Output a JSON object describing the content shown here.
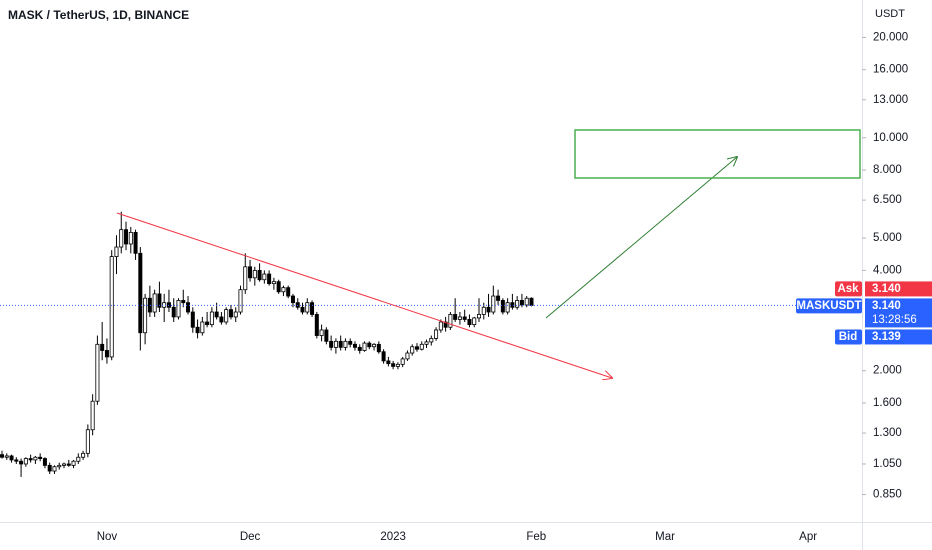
{
  "chart_data": {
    "type": "candlestick",
    "title": "MASK / TetherUS, 1D, BINANCE",
    "y_unit": "USDT",
    "log_scale": true,
    "ylim": [
      0.713,
      25.9
    ],
    "yticks": [
      {
        "value": 20,
        "label": "20.000"
      },
      {
        "value": 16,
        "label": "16.000"
      },
      {
        "value": 13,
        "label": "13.000"
      },
      {
        "value": 10,
        "label": "10.000"
      },
      {
        "value": 8,
        "label": "8.000"
      },
      {
        "value": 6.5,
        "label": "6.500"
      },
      {
        "value": 5,
        "label": "5.000"
      },
      {
        "value": 4,
        "label": "4.000"
      },
      {
        "value": 2,
        "label": "2.000"
      },
      {
        "value": 1.6,
        "label": "1.600"
      },
      {
        "value": 1.3,
        "label": "1.300"
      },
      {
        "value": 1.05,
        "label": "1.050"
      },
      {
        "value": 0.85,
        "label": "0.850"
      }
    ],
    "categories": [
      null,
      null,
      null,
      null,
      null,
      null,
      null,
      null,
      null,
      null,
      null,
      null,
      null,
      null,
      null,
      null,
      null,
      null,
      null,
      null,
      null,
      null,
      "Nov",
      null,
      null,
      null,
      null,
      null,
      null,
      null,
      null,
      null,
      null,
      null,
      null,
      null,
      null,
      null,
      null,
      null,
      null,
      null,
      null,
      null,
      null,
      null,
      null,
      null,
      null,
      null,
      null,
      null,
      "Dec",
      null,
      null,
      null,
      null,
      null,
      null,
      null,
      null,
      null,
      null,
      null,
      null,
      null,
      null,
      null,
      null,
      null,
      null,
      null,
      null,
      null,
      null,
      null,
      null,
      null,
      null,
      null,
      null,
      null,
      "2023",
      null,
      null,
      null,
      null,
      null,
      null,
      null,
      null,
      null,
      null,
      null,
      null,
      null,
      null,
      null,
      null,
      null,
      null,
      null,
      null,
      null,
      null,
      null,
      null,
      null,
      null,
      null,
      null,
      null,
      "Feb",
      null,
      null,
      null,
      null,
      null,
      null,
      null,
      null,
      null,
      null,
      null,
      null,
      null,
      null,
      null,
      null,
      null,
      null,
      null,
      null,
      null,
      null,
      null,
      null,
      null,
      null,
      "Mar",
      null,
      null,
      null,
      null,
      null,
      null,
      null,
      null,
      null,
      null,
      null,
      null,
      null,
      null,
      null,
      null,
      null,
      null,
      null,
      null,
      null,
      null,
      null,
      null,
      null,
      null,
      null,
      null,
      null,
      "Apr",
      null,
      null,
      null,
      null,
      null,
      null,
      null
    ],
    "series": [
      {
        "name": "MASKUSDT",
        "up_color": "#ffffff",
        "down_color": "#000000",
        "border_color": "#000000",
        "values": [
          [
            1.12,
            1.15,
            1.09,
            1.1
          ],
          [
            1.1,
            1.13,
            1.08,
            1.11
          ],
          [
            1.11,
            1.12,
            1.06,
            1.08
          ],
          [
            1.08,
            1.1,
            1.05,
            1.07
          ],
          [
            1.07,
            1.09,
            0.96,
            1.05
          ],
          [
            1.05,
            1.1,
            1.03,
            1.09
          ],
          [
            1.09,
            1.12,
            1.06,
            1.08
          ],
          [
            1.08,
            1.11,
            1.05,
            1.1
          ],
          [
            1.1,
            1.13,
            1.07,
            1.09
          ],
          [
            1.09,
            1.1,
            1.02,
            1.04
          ],
          [
            1.04,
            1.06,
            0.98,
            1.0
          ],
          [
            1.0,
            1.04,
            0.98,
            1.03
          ],
          [
            1.03,
            1.06,
            1.01,
            1.04
          ],
          [
            1.04,
            1.06,
            1.02,
            1.05
          ],
          [
            1.05,
            1.08,
            1.03,
            1.04
          ],
          [
            1.04,
            1.08,
            1.02,
            1.07
          ],
          [
            1.07,
            1.13,
            1.05,
            1.1
          ],
          [
            1.1,
            1.15,
            1.08,
            1.13
          ],
          [
            1.13,
            1.38,
            1.1,
            1.33
          ],
          [
            1.33,
            1.7,
            1.28,
            1.62
          ],
          [
            1.62,
            2.55,
            1.58,
            2.4
          ],
          [
            2.4,
            2.8,
            2.15,
            2.3
          ],
          [
            2.3,
            2.5,
            2.1,
            2.2
          ],
          [
            2.2,
            4.6,
            2.15,
            4.4
          ],
          [
            4.4,
            5.1,
            3.9,
            4.7
          ],
          [
            4.7,
            6.0,
            4.5,
            5.3
          ],
          [
            5.3,
            5.6,
            4.6,
            4.8
          ],
          [
            4.8,
            5.4,
            4.5,
            5.2
          ],
          [
            5.2,
            5.3,
            4.3,
            4.5
          ],
          [
            4.5,
            4.7,
            2.3,
            2.6
          ],
          [
            2.6,
            3.4,
            2.4,
            3.3
          ],
          [
            3.3,
            3.6,
            2.9,
            3.0
          ],
          [
            3.0,
            3.5,
            2.9,
            3.4
          ],
          [
            3.4,
            3.7,
            3.0,
            3.1
          ],
          [
            3.1,
            3.4,
            2.8,
            3.2
          ],
          [
            3.2,
            3.5,
            3.0,
            3.1
          ],
          [
            3.1,
            3.3,
            2.8,
            2.9
          ],
          [
            2.9,
            3.3,
            2.85,
            3.25
          ],
          [
            3.25,
            3.5,
            3.1,
            3.2
          ],
          [
            3.2,
            3.35,
            2.95,
            3.0
          ],
          [
            3.0,
            3.1,
            2.6,
            2.7
          ],
          [
            2.7,
            2.85,
            2.5,
            2.6
          ],
          [
            2.6,
            2.9,
            2.55,
            2.8
          ],
          [
            2.8,
            3.0,
            2.7,
            2.75
          ],
          [
            2.75,
            3.1,
            2.7,
            3.0
          ],
          [
            3.0,
            3.2,
            2.85,
            2.9
          ],
          [
            2.9,
            3.0,
            2.75,
            2.8
          ],
          [
            2.8,
            3.1,
            2.75,
            3.05
          ],
          [
            3.05,
            3.15,
            2.85,
            2.9
          ],
          [
            2.9,
            3.1,
            2.8,
            3.0
          ],
          [
            3.0,
            3.6,
            2.95,
            3.5
          ],
          [
            3.5,
            4.5,
            3.4,
            4.1
          ],
          [
            4.1,
            4.3,
            3.7,
            3.8
          ],
          [
            3.8,
            4.1,
            3.6,
            4.0
          ],
          [
            4.0,
            4.2,
            3.7,
            3.75
          ],
          [
            3.75,
            4.0,
            3.65,
            3.9
          ],
          [
            3.9,
            4.0,
            3.6,
            3.65
          ],
          [
            3.65,
            3.8,
            3.5,
            3.7
          ],
          [
            3.7,
            3.75,
            3.4,
            3.45
          ],
          [
            3.45,
            3.6,
            3.35,
            3.55
          ],
          [
            3.55,
            3.6,
            3.3,
            3.35
          ],
          [
            3.35,
            3.4,
            3.1,
            3.2
          ],
          [
            3.2,
            3.3,
            3.05,
            3.1
          ],
          [
            3.1,
            3.2,
            2.95,
            3.0
          ],
          [
            3.0,
            3.3,
            2.95,
            3.2
          ],
          [
            3.2,
            3.25,
            2.9,
            2.95
          ],
          [
            2.95,
            3.0,
            2.5,
            2.55
          ],
          [
            2.55,
            2.75,
            2.45,
            2.65
          ],
          [
            2.65,
            2.7,
            2.4,
            2.45
          ],
          [
            2.45,
            2.55,
            2.3,
            2.35
          ],
          [
            2.35,
            2.5,
            2.25,
            2.45
          ],
          [
            2.45,
            2.55,
            2.3,
            2.35
          ],
          [
            2.35,
            2.5,
            2.3,
            2.45
          ],
          [
            2.45,
            2.5,
            2.35,
            2.4
          ],
          [
            2.4,
            2.45,
            2.3,
            2.35
          ],
          [
            2.35,
            2.4,
            2.25,
            2.3
          ],
          [
            2.3,
            2.45,
            2.28,
            2.42
          ],
          [
            2.42,
            2.45,
            2.32,
            2.36
          ],
          [
            2.36,
            2.42,
            2.3,
            2.4
          ],
          [
            2.4,
            2.45,
            2.25,
            2.28
          ],
          [
            2.28,
            2.32,
            2.1,
            2.14
          ],
          [
            2.14,
            2.2,
            2.06,
            2.1
          ],
          [
            2.1,
            2.14,
            2.02,
            2.06
          ],
          [
            2.06,
            2.12,
            2.02,
            2.09
          ],
          [
            2.09,
            2.2,
            2.05,
            2.17
          ],
          [
            2.17,
            2.3,
            2.14,
            2.26
          ],
          [
            2.26,
            2.4,
            2.22,
            2.36
          ],
          [
            2.36,
            2.42,
            2.28,
            2.32
          ],
          [
            2.32,
            2.45,
            2.3,
            2.4
          ],
          [
            2.4,
            2.48,
            2.34,
            2.44
          ],
          [
            2.44,
            2.55,
            2.38,
            2.5
          ],
          [
            2.5,
            2.7,
            2.46,
            2.65
          ],
          [
            2.65,
            2.85,
            2.6,
            2.8
          ],
          [
            2.8,
            2.9,
            2.62,
            2.7
          ],
          [
            2.7,
            3.0,
            2.65,
            2.95
          ],
          [
            2.95,
            3.3,
            2.8,
            2.85
          ],
          [
            2.85,
            3.0,
            2.75,
            2.9
          ],
          [
            2.9,
            3.05,
            2.8,
            2.85
          ],
          [
            2.85,
            2.95,
            2.7,
            2.75
          ],
          [
            2.75,
            2.9,
            2.7,
            2.88
          ],
          [
            2.88,
            3.3,
            2.8,
            2.95
          ],
          [
            2.95,
            3.2,
            2.85,
            3.1
          ],
          [
            3.1,
            3.4,
            2.9,
            3.0
          ],
          [
            3.0,
            3.6,
            2.95,
            3.35
          ],
          [
            3.35,
            3.5,
            3.15,
            3.25
          ],
          [
            3.25,
            3.3,
            2.95,
            3.0
          ],
          [
            3.0,
            3.3,
            2.95,
            3.2
          ],
          [
            3.2,
            3.4,
            3.05,
            3.1
          ],
          [
            3.1,
            3.35,
            3.05,
            3.25
          ],
          [
            3.25,
            3.4,
            3.1,
            3.15
          ],
          [
            3.15,
            3.35,
            3.1,
            3.3
          ],
          [
            3.3,
            3.32,
            3.12,
            3.14
          ],
          null,
          null,
          null,
          null,
          null,
          null,
          null,
          null,
          null,
          null,
          null,
          null,
          null,
          null,
          null,
          null,
          null,
          null,
          null,
          null,
          null,
          null,
          null,
          null,
          null,
          null,
          null,
          null,
          null,
          null,
          null,
          null,
          null,
          null,
          null,
          null,
          null,
          null,
          null,
          null,
          null,
          null,
          null,
          null,
          null,
          null,
          null,
          null,
          null,
          null,
          null,
          null,
          null,
          null,
          null,
          null,
          null,
          null,
          null,
          null,
          null,
          null,
          null,
          null,
          null,
          null,
          null,
          null,
          null
        ]
      }
    ],
    "quote": {
      "symbol": "MASKUSDT",
      "last": 3.14,
      "last_label": "3.140",
      "countdown": "13:28:56",
      "ask_text": "Ask",
      "ask": 3.14,
      "ask_label": "3.140",
      "bid_text": "Bid",
      "bid": 3.139,
      "bid_label": "3.139"
    }
  }
}
